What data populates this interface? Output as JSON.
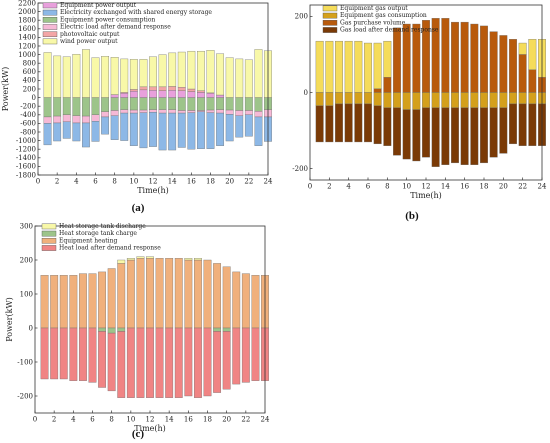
{
  "chart_data": [
    {
      "panel": "(a)",
      "type": "bar",
      "stacked": true,
      "xlabel": "Time(h)",
      "ylabel": "Power(kW)",
      "xlim": [
        0,
        24
      ],
      "ylim": [
        -1800,
        2200
      ],
      "x": [
        1,
        2,
        3,
        4,
        5,
        6,
        7,
        8,
        9,
        10,
        11,
        12,
        13,
        14,
        15,
        16,
        17,
        18,
        19,
        20,
        21,
        22,
        23,
        24
      ],
      "xticks": [
        "0",
        "2",
        "4",
        "6",
        "8",
        "10",
        "12",
        "14",
        "16",
        "18",
        "20",
        "22",
        "24"
      ],
      "yticks": [
        "-1800",
        "-1600",
        "-1400",
        "-1200",
        "-1000",
        "-800",
        "-600",
        "-400",
        "-200",
        "0",
        "200",
        "400",
        "600",
        "800",
        "1000",
        "1200",
        "1400",
        "1600",
        "1800",
        "2000",
        "2200"
      ],
      "legend": [
        "Equipment power output",
        "Electricity exchanged with shared energy storage",
        "Equipment power consumption",
        "Electric load after demand response",
        "photovoltaic output",
        "wind power output"
      ],
      "legend_position": "top-left",
      "series": [
        {
          "name": "Equipment power output",
          "color": "#e8a0dc",
          "values": [
            0,
            0,
            0,
            0,
            0,
            0,
            0,
            70,
            100,
            150,
            180,
            170,
            160,
            170,
            160,
            140,
            120,
            100,
            60,
            0,
            0,
            0,
            0,
            0
          ]
        },
        {
          "name": "photovoltaic output",
          "color": "#f3a6a6",
          "values": [
            0,
            0,
            0,
            0,
            0,
            0,
            0,
            0,
            20,
            40,
            70,
            80,
            90,
            90,
            80,
            60,
            40,
            10,
            0,
            0,
            0,
            0,
            0,
            0
          ]
        },
        {
          "name": "wind power output",
          "color": "#f8f8a8",
          "values": [
            1050,
            970,
            950,
            1010,
            1120,
            930,
            960,
            870,
            780,
            700,
            640,
            700,
            750,
            780,
            820,
            880,
            920,
            990,
            960,
            930,
            900,
            880,
            1120,
            1090
          ]
        },
        {
          "name": "Equipment power consumption",
          "color": "#9dc48a",
          "values": [
            -450,
            -430,
            -400,
            -420,
            -430,
            -400,
            -330,
            -300,
            -280,
            -290,
            -290,
            -280,
            -280,
            -280,
            -300,
            -300,
            -300,
            -290,
            -280,
            -290,
            -300,
            -300,
            -320,
            -280
          ]
        },
        {
          "name": "Electric load after demand response",
          "color": "#f6b9d6",
          "values": [
            -150,
            -160,
            -160,
            -170,
            -160,
            -150,
            -120,
            -120,
            -80,
            -70,
            -60,
            -60,
            -80,
            -80,
            -60,
            -50,
            -30,
            -60,
            -80,
            -100,
            -120,
            -100,
            -130,
            -170
          ]
        },
        {
          "name": "Electricity exchanged with shared energy storage",
          "color": "#8db8e6",
          "values": [
            -500,
            -420,
            -390,
            -420,
            -560,
            -470,
            -400,
            -560,
            -640,
            -760,
            -820,
            -800,
            -860,
            -860,
            -800,
            -850,
            -860,
            -840,
            -760,
            -620,
            -500,
            -500,
            -670,
            -570
          ]
        }
      ]
    },
    {
      "panel": "(b)",
      "type": "bar",
      "stacked": true,
      "xlabel": "Time(h)",
      "ylabel": "",
      "xlim": [
        0,
        24
      ],
      "ylim": [
        -230,
        230
      ],
      "x": [
        1,
        2,
        3,
        4,
        5,
        6,
        7,
        8,
        9,
        10,
        11,
        12,
        13,
        14,
        15,
        16,
        17,
        18,
        19,
        20,
        21,
        22,
        23,
        24
      ],
      "xticks": [
        "0",
        "2",
        "4",
        "6",
        "8",
        "10",
        "12",
        "14",
        "16",
        "18",
        "20",
        "22",
        "24"
      ],
      "yticks": [
        "-200",
        "0",
        "200"
      ],
      "legend": [
        "Equipment gas output",
        "Equipment gas consumption",
        "Gas purchase volume",
        "Gas load after demand response"
      ],
      "legend_position": "top-left",
      "series": [
        {
          "name": "Gas purchase volume",
          "color": "#b85a0c",
          "values": [
            0,
            0,
            0,
            0,
            0,
            0,
            10,
            40,
            170,
            180,
            180,
            190,
            195,
            195,
            185,
            185,
            180,
            175,
            160,
            150,
            140,
            100,
            60,
            40
          ]
        },
        {
          "name": "Equipment gas output",
          "color": "#f5dc5a",
          "values": [
            135,
            135,
            135,
            135,
            135,
            130,
            120,
            95,
            0,
            0,
            0,
            0,
            0,
            0,
            0,
            0,
            0,
            0,
            0,
            0,
            0,
            30,
            80,
            100
          ]
        },
        {
          "name": "Equipment gas consumption",
          "color": "#d4a01c",
          "values": [
            -35,
            -35,
            -30,
            -30,
            -30,
            -30,
            -35,
            -40,
            -40,
            -45,
            -45,
            -40,
            -40,
            -40,
            -40,
            -40,
            -40,
            -40,
            -40,
            -40,
            -30,
            -30,
            -30,
            -30
          ]
        },
        {
          "name": "Gas load after demand response",
          "color": "#7a3a06",
          "values": [
            -95,
            -95,
            -100,
            -100,
            -100,
            -100,
            -100,
            -100,
            -125,
            -130,
            -135,
            -130,
            -155,
            -150,
            -145,
            -150,
            -150,
            -145,
            -130,
            -120,
            -105,
            -110,
            -110,
            -110
          ]
        }
      ]
    },
    {
      "panel": "(c)",
      "type": "bar",
      "stacked": true,
      "xlabel": "Time(h)",
      "ylabel": "Power(kW)",
      "xlim": [
        0,
        24
      ],
      "ylim": [
        -250,
        300
      ],
      "x": [
        1,
        2,
        3,
        4,
        5,
        6,
        7,
        8,
        9,
        10,
        11,
        12,
        13,
        14,
        15,
        16,
        17,
        18,
        19,
        20,
        21,
        22,
        23,
        24
      ],
      "xticks": [
        "0",
        "2",
        "4",
        "6",
        "8",
        "10",
        "12",
        "14",
        "16",
        "18",
        "20",
        "22",
        "24"
      ],
      "yticks": [
        "-200",
        "-100",
        "0",
        "100",
        "200",
        "300"
      ],
      "legend": [
        "Heat storage tank discharge",
        "Heat storage tank charge",
        "Equipment heating",
        "Heat load after demand response"
      ],
      "legend_position": "top-left",
      "series": [
        {
          "name": "Equipment heating",
          "color": "#f0b07c",
          "values": [
            155,
            155,
            155,
            155,
            160,
            160,
            165,
            175,
            190,
            200,
            205,
            205,
            205,
            205,
            205,
            200,
            200,
            200,
            190,
            180,
            165,
            160,
            155,
            155
          ]
        },
        {
          "name": "Heat storage tank discharge",
          "color": "#f8f8a8",
          "values": [
            0,
            0,
            0,
            0,
            0,
            0,
            0,
            0,
            10,
            5,
            5,
            5,
            0,
            0,
            0,
            5,
            5,
            0,
            0,
            0,
            0,
            0,
            0,
            0
          ]
        },
        {
          "name": "Heat storage tank charge",
          "color": "#9dc48a",
          "values": [
            0,
            0,
            0,
            0,
            0,
            0,
            -10,
            -15,
            -10,
            0,
            0,
            0,
            0,
            0,
            0,
            0,
            0,
            0,
            -10,
            -10,
            0,
            0,
            0,
            0
          ]
        },
        {
          "name": "Heat load after demand response",
          "color": "#f08484",
          "values": [
            -150,
            -150,
            -150,
            -155,
            -155,
            -160,
            -165,
            -170,
            -195,
            -205,
            -205,
            -205,
            -205,
            -205,
            -205,
            -200,
            -205,
            -200,
            -180,
            -170,
            -165,
            -160,
            -155,
            -155
          ]
        }
      ]
    }
  ],
  "labels": {
    "a": "(a)",
    "b": "(b)",
    "c": "(c)"
  }
}
